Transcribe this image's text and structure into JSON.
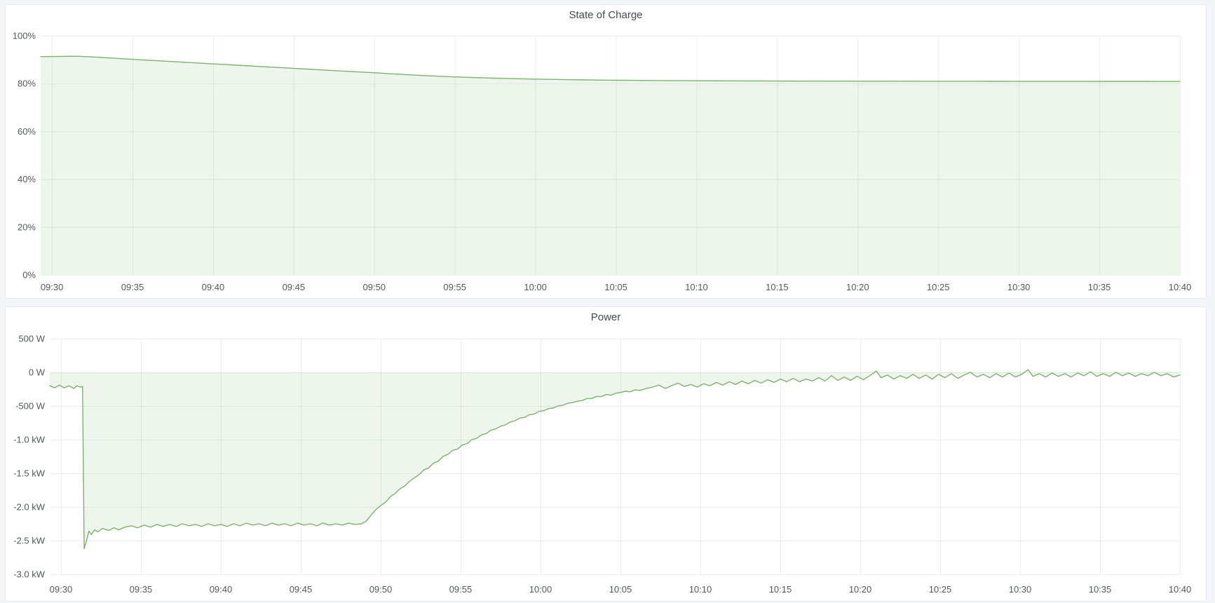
{
  "page": {
    "background_color": "#f4f5f9",
    "panel_background": "#ffffff",
    "accent_green": "#7eb26d"
  },
  "chart_data": [
    {
      "type": "area",
      "title": "State of Charge",
      "xlabel": "",
      "ylabel": "",
      "line_color": "#7eb26d",
      "fill_color": "rgba(126,178,109,0.13)",
      "grid_color": "rgba(30,40,50,0.08)",
      "grid": "on",
      "legend": "none",
      "baseline": 0,
      "xlim": [
        29.3,
        100
      ],
      "ylim": [
        0,
        100
      ],
      "y_ticks": [
        {
          "v": 100,
          "label": "100%"
        },
        {
          "v": 80,
          "label": "80%"
        },
        {
          "v": 60,
          "label": "60%"
        },
        {
          "v": 40,
          "label": "40%"
        },
        {
          "v": 20,
          "label": "20%"
        },
        {
          "v": 0,
          "label": "0%"
        }
      ],
      "x_ticks": [
        {
          "t": 30,
          "label": "09:30"
        },
        {
          "t": 35,
          "label": "09:35"
        },
        {
          "t": 40,
          "label": "09:40"
        },
        {
          "t": 45,
          "label": "09:45"
        },
        {
          "t": 50,
          "label": "09:50"
        },
        {
          "t": 55,
          "label": "09:55"
        },
        {
          "t": 60,
          "label": "10:00"
        },
        {
          "t": 65,
          "label": "10:05"
        },
        {
          "t": 70,
          "label": "10:10"
        },
        {
          "t": 75,
          "label": "10:15"
        },
        {
          "t": 80,
          "label": "10:20"
        },
        {
          "t": 85,
          "label": "10:25"
        },
        {
          "t": 90,
          "label": "10:30"
        },
        {
          "t": 95,
          "label": "10:35"
        },
        {
          "t": 100,
          "label": "10:40"
        }
      ],
      "points": [
        [
          29.3,
          91.3
        ],
        [
          30,
          91.33
        ],
        [
          30.6,
          91.38
        ],
        [
          31.2,
          91.42
        ],
        [
          31.6,
          91.4
        ],
        [
          32,
          91.32
        ],
        [
          32.5,
          91.15
        ],
        [
          33,
          90.95
        ],
        [
          33.5,
          90.75
        ],
        [
          34,
          90.55
        ],
        [
          34.5,
          90.35
        ],
        [
          35,
          90.15
        ],
        [
          35.5,
          89.95
        ],
        [
          36,
          89.76
        ],
        [
          36.5,
          89.57
        ],
        [
          37,
          89.38
        ],
        [
          37.5,
          89.19
        ],
        [
          38,
          89.0
        ],
        [
          38.5,
          88.81
        ],
        [
          39,
          88.62
        ],
        [
          39.5,
          88.43
        ],
        [
          40,
          88.25
        ],
        [
          40.5,
          88.06
        ],
        [
          41,
          87.87
        ],
        [
          41.5,
          87.68
        ],
        [
          42,
          87.5
        ],
        [
          42.5,
          87.31
        ],
        [
          43,
          87.12
        ],
        [
          43.5,
          86.93
        ],
        [
          44,
          86.75
        ],
        [
          44.5,
          86.56
        ],
        [
          45,
          86.37
        ],
        [
          45.5,
          86.18
        ],
        [
          46,
          86.0
        ],
        [
          46.5,
          85.81
        ],
        [
          47,
          85.62
        ],
        [
          47.5,
          85.43
        ],
        [
          48,
          85.25
        ],
        [
          48.5,
          85.06
        ],
        [
          49,
          84.87
        ],
        [
          49.5,
          84.7
        ],
        [
          50,
          84.55
        ],
        [
          50.5,
          84.33
        ],
        [
          51,
          84.12
        ],
        [
          51.5,
          83.92
        ],
        [
          52,
          83.73
        ],
        [
          52.5,
          83.55
        ],
        [
          53,
          83.38
        ],
        [
          53.5,
          83.22
        ],
        [
          54,
          83.07
        ],
        [
          54.5,
          82.93
        ],
        [
          55,
          82.8
        ],
        [
          55.5,
          82.68
        ],
        [
          56,
          82.56
        ],
        [
          56.5,
          82.45
        ],
        [
          57,
          82.35
        ],
        [
          57.5,
          82.26
        ],
        [
          58,
          82.17
        ],
        [
          58.5,
          82.09
        ],
        [
          59,
          82.01
        ],
        [
          59.5,
          81.94
        ],
        [
          60,
          81.87
        ],
        [
          61,
          81.75
        ],
        [
          62,
          81.65
        ],
        [
          63,
          81.56
        ],
        [
          64,
          81.48
        ],
        [
          65,
          81.41
        ],
        [
          66,
          81.35
        ],
        [
          67,
          81.3
        ],
        [
          68,
          81.26
        ],
        [
          69,
          81.22
        ],
        [
          70,
          81.19
        ],
        [
          71,
          81.16
        ],
        [
          72,
          81.13
        ],
        [
          73,
          81.11
        ],
        [
          74,
          81.09
        ],
        [
          75,
          81.07
        ],
        [
          76,
          81.05
        ],
        [
          78,
          81.02
        ],
        [
          80,
          81.0
        ],
        [
          82,
          80.98
        ],
        [
          84,
          80.96
        ],
        [
          86,
          80.95
        ],
        [
          88,
          80.94
        ],
        [
          90,
          80.93
        ],
        [
          92,
          80.92
        ],
        [
          94,
          80.91
        ],
        [
          96,
          80.9
        ],
        [
          98,
          80.9
        ],
        [
          100,
          80.89
        ]
      ]
    },
    {
      "type": "area",
      "title": "Power",
      "xlabel": "",
      "ylabel": "",
      "line_color": "#7eb26d",
      "fill_color": "rgba(126,178,109,0.13)",
      "grid_color": "rgba(30,40,50,0.08)",
      "grid": "on",
      "legend": "none",
      "baseline": 0,
      "xlim": [
        29.3,
        100
      ],
      "ylim": [
        -3.0,
        0.5
      ],
      "y_ticks": [
        {
          "v": 0.5,
          "label": "500 W"
        },
        {
          "v": 0,
          "label": "0 W"
        },
        {
          "v": -0.5,
          "label": "-500 W"
        },
        {
          "v": -1.0,
          "label": "-1.0 kW"
        },
        {
          "v": -1.5,
          "label": "-1.5 kW"
        },
        {
          "v": -2.0,
          "label": "-2.0 kW"
        },
        {
          "v": -2.5,
          "label": "-2.5 kW"
        },
        {
          "v": -3.0,
          "label": "-3.0 kW"
        }
      ],
      "x_ticks": [
        {
          "t": 30,
          "label": "09:30"
        },
        {
          "t": 35,
          "label": "09:35"
        },
        {
          "t": 40,
          "label": "09:40"
        },
        {
          "t": 45,
          "label": "09:45"
        },
        {
          "t": 50,
          "label": "09:50"
        },
        {
          "t": 55,
          "label": "09:55"
        },
        {
          "t": 60,
          "label": "10:00"
        },
        {
          "t": 65,
          "label": "10:05"
        },
        {
          "t": 70,
          "label": "10:10"
        },
        {
          "t": 75,
          "label": "10:15"
        },
        {
          "t": 80,
          "label": "10:20"
        },
        {
          "t": 85,
          "label": "10:25"
        },
        {
          "t": 90,
          "label": "10:30"
        },
        {
          "t": 95,
          "label": "10:35"
        },
        {
          "t": 100,
          "label": "10:40"
        }
      ],
      "points": [
        [
          29.3,
          -0.2
        ],
        [
          29.6,
          -0.23
        ],
        [
          29.9,
          -0.19
        ],
        [
          30.2,
          -0.23
        ],
        [
          30.5,
          -0.2
        ],
        [
          30.8,
          -0.24
        ],
        [
          31.0,
          -0.2
        ],
        [
          31.2,
          -0.22
        ],
        [
          31.35,
          -0.21
        ],
        [
          31.45,
          -2.62
        ],
        [
          31.6,
          -2.5
        ],
        [
          31.75,
          -2.36
        ],
        [
          31.9,
          -2.41
        ],
        [
          32.1,
          -2.34
        ],
        [
          32.3,
          -2.37
        ],
        [
          32.6,
          -2.32
        ],
        [
          33.0,
          -2.35
        ],
        [
          33.3,
          -2.31
        ],
        [
          33.6,
          -2.34
        ],
        [
          34.0,
          -2.3
        ],
        [
          34.4,
          -2.28
        ],
        [
          34.8,
          -2.31
        ],
        [
          35.2,
          -2.27
        ],
        [
          35.6,
          -2.3
        ],
        [
          36.0,
          -2.26
        ],
        [
          36.4,
          -2.29
        ],
        [
          36.8,
          -2.26
        ],
        [
          37.2,
          -2.29
        ],
        [
          37.6,
          -2.25
        ],
        [
          38.0,
          -2.28
        ],
        [
          38.4,
          -2.26
        ],
        [
          38.8,
          -2.29
        ],
        [
          39.2,
          -2.25
        ],
        [
          39.6,
          -2.28
        ],
        [
          40.0,
          -2.26
        ],
        [
          40.4,
          -2.29
        ],
        [
          40.8,
          -2.25
        ],
        [
          41.2,
          -2.28
        ],
        [
          41.6,
          -2.24
        ],
        [
          42.0,
          -2.27
        ],
        [
          42.4,
          -2.25
        ],
        [
          42.8,
          -2.28
        ],
        [
          43.2,
          -2.24
        ],
        [
          43.6,
          -2.27
        ],
        [
          44.0,
          -2.25
        ],
        [
          44.4,
          -2.28
        ],
        [
          44.8,
          -2.24
        ],
        [
          45.2,
          -2.27
        ],
        [
          45.6,
          -2.25
        ],
        [
          46.0,
          -2.28
        ],
        [
          46.4,
          -2.24
        ],
        [
          46.8,
          -2.27
        ],
        [
          47.2,
          -2.25
        ],
        [
          47.6,
          -2.27
        ],
        [
          48.0,
          -2.24
        ],
        [
          48.4,
          -2.26
        ],
        [
          48.8,
          -2.25
        ],
        [
          49.1,
          -2.21
        ],
        [
          49.4,
          -2.12
        ],
        [
          49.7,
          -2.04
        ],
        [
          50.0,
          -1.98
        ],
        [
          50.3,
          -1.93
        ],
        [
          50.6,
          -1.85
        ],
        [
          50.9,
          -1.8
        ],
        [
          51.2,
          -1.73
        ],
        [
          51.5,
          -1.69
        ],
        [
          51.8,
          -1.62
        ],
        [
          52.1,
          -1.57
        ],
        [
          52.4,
          -1.52
        ],
        [
          52.7,
          -1.45
        ],
        [
          53.0,
          -1.42
        ],
        [
          53.3,
          -1.35
        ],
        [
          53.6,
          -1.32
        ],
        [
          53.9,
          -1.25
        ],
        [
          54.2,
          -1.22
        ],
        [
          54.5,
          -1.16
        ],
        [
          54.8,
          -1.14
        ],
        [
          55.1,
          -1.08
        ],
        [
          55.4,
          -1.06
        ],
        [
          55.7,
          -1.0
        ],
        [
          56.0,
          -0.98
        ],
        [
          56.3,
          -0.93
        ],
        [
          56.6,
          -0.91
        ],
        [
          56.9,
          -0.86
        ],
        [
          57.2,
          -0.84
        ],
        [
          57.5,
          -0.8
        ],
        [
          57.8,
          -0.78
        ],
        [
          58.1,
          -0.74
        ],
        [
          58.4,
          -0.72
        ],
        [
          58.7,
          -0.68
        ],
        [
          59.0,
          -0.67
        ],
        [
          59.3,
          -0.63
        ],
        [
          59.6,
          -0.62
        ],
        [
          59.9,
          -0.58
        ],
        [
          60.2,
          -0.57
        ],
        [
          60.5,
          -0.54
        ],
        [
          60.8,
          -0.53
        ],
        [
          61.1,
          -0.5
        ],
        [
          61.4,
          -0.49
        ],
        [
          61.7,
          -0.46
        ],
        [
          62.0,
          -0.45
        ],
        [
          62.3,
          -0.43
        ],
        [
          62.6,
          -0.42
        ],
        [
          62.9,
          -0.39
        ],
        [
          63.2,
          -0.39
        ],
        [
          63.5,
          -0.36
        ],
        [
          63.8,
          -0.36
        ],
        [
          64.1,
          -0.33
        ],
        [
          64.4,
          -0.34
        ],
        [
          64.7,
          -0.31
        ],
        [
          65.0,
          -0.3
        ],
        [
          65.3,
          -0.28
        ],
        [
          65.6,
          -0.29
        ],
        [
          65.9,
          -0.26
        ],
        [
          66.2,
          -0.27
        ],
        [
          66.6,
          -0.24
        ],
        [
          67.0,
          -0.22
        ],
        [
          67.4,
          -0.19
        ],
        [
          67.8,
          -0.24
        ],
        [
          68.2,
          -0.2
        ],
        [
          68.6,
          -0.16
        ],
        [
          69.0,
          -0.21
        ],
        [
          69.4,
          -0.18
        ],
        [
          69.8,
          -0.22
        ],
        [
          70.2,
          -0.17
        ],
        [
          70.6,
          -0.2
        ],
        [
          71.0,
          -0.15
        ],
        [
          71.4,
          -0.19
        ],
        [
          71.8,
          -0.14
        ],
        [
          72.2,
          -0.18
        ],
        [
          72.6,
          -0.13
        ],
        [
          73.0,
          -0.17
        ],
        [
          73.4,
          -0.12
        ],
        [
          73.8,
          -0.16
        ],
        [
          74.2,
          -0.11
        ],
        [
          74.6,
          -0.15
        ],
        [
          75.0,
          -0.1
        ],
        [
          75.4,
          -0.14
        ],
        [
          75.8,
          -0.09
        ],
        [
          76.2,
          -0.14
        ],
        [
          76.6,
          -0.1
        ],
        [
          77.0,
          -0.13
        ],
        [
          77.4,
          -0.08
        ],
        [
          77.8,
          -0.13
        ],
        [
          78.2,
          -0.05
        ],
        [
          78.6,
          -0.12
        ],
        [
          79.0,
          -0.07
        ],
        [
          79.4,
          -0.12
        ],
        [
          79.8,
          -0.06
        ],
        [
          80.2,
          -0.11
        ],
        [
          80.6,
          -0.05
        ],
        [
          81.0,
          0.02
        ],
        [
          81.3,
          -0.08
        ],
        [
          81.7,
          -0.04
        ],
        [
          82.1,
          -0.1
        ],
        [
          82.5,
          -0.05
        ],
        [
          82.9,
          -0.09
        ],
        [
          83.3,
          -0.03
        ],
        [
          83.7,
          -0.09
        ],
        [
          84.1,
          -0.04
        ],
        [
          84.5,
          -0.1
        ],
        [
          84.9,
          -0.03
        ],
        [
          85.3,
          -0.08
        ],
        [
          85.7,
          -0.02
        ],
        [
          86.1,
          -0.09
        ],
        [
          86.5,
          -0.04
        ],
        [
          86.9,
          0.0
        ],
        [
          87.3,
          -0.07
        ],
        [
          87.7,
          -0.03
        ],
        [
          88.1,
          -0.08
        ],
        [
          88.5,
          -0.02
        ],
        [
          88.9,
          -0.07
        ],
        [
          89.3,
          -0.01
        ],
        [
          89.7,
          -0.07
        ],
        [
          90.1,
          -0.03
        ],
        [
          90.5,
          0.04
        ],
        [
          90.8,
          -0.06
        ],
        [
          91.2,
          -0.02
        ],
        [
          91.6,
          -0.07
        ],
        [
          92.0,
          -0.01
        ],
        [
          92.4,
          -0.06
        ],
        [
          92.8,
          -0.02
        ],
        [
          93.2,
          -0.07
        ],
        [
          93.6,
          -0.01
        ],
        [
          94.0,
          -0.05
        ],
        [
          94.4,
          0.01
        ],
        [
          94.8,
          -0.06
        ],
        [
          95.2,
          -0.02
        ],
        [
          95.6,
          -0.06
        ],
        [
          96.0,
          0.0
        ],
        [
          96.4,
          -0.05
        ],
        [
          96.8,
          -0.01
        ],
        [
          97.2,
          -0.06
        ],
        [
          97.6,
          -0.02
        ],
        [
          98.0,
          -0.05
        ],
        [
          98.4,
          0.0
        ],
        [
          98.8,
          -0.05
        ],
        [
          99.2,
          -0.02
        ],
        [
          99.6,
          -0.07
        ],
        [
          100,
          -0.04
        ]
      ]
    }
  ]
}
